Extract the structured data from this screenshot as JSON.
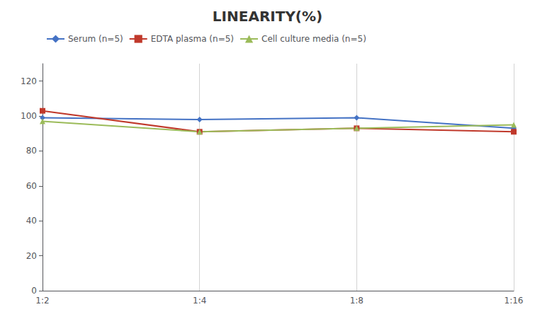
{
  "chart_data": {
    "type": "line",
    "title": "LINEARITY(%)",
    "categories": [
      "1:2",
      "1:4",
      "1:8",
      "1:16"
    ],
    "series": [
      {
        "name": "Serum (n=5)",
        "color": "#4472C4",
        "marker": "diamond",
        "values": [
          99,
          98,
          99,
          93
        ]
      },
      {
        "name": "EDTA plasma (n=5)",
        "color": "#C0392B",
        "marker": "square",
        "values": [
          103,
          91,
          93,
          91
        ]
      },
      {
        "name": "Cell culture media (n=5)",
        "color": "#9BBB59",
        "marker": "triangle",
        "values": [
          97,
          91,
          93,
          95
        ]
      }
    ],
    "ylim": [
      0,
      130
    ],
    "yticks": [
      0,
      20,
      40,
      60,
      80,
      100,
      120
    ],
    "grid": "x",
    "legend": "upper left"
  }
}
